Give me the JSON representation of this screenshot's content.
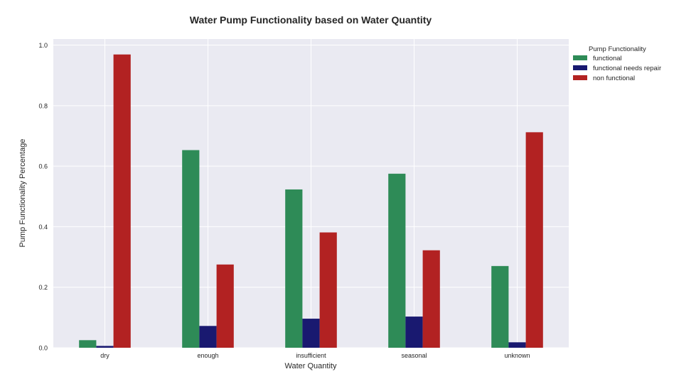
{
  "chart_data": {
    "type": "bar",
    "title": "Water Pump Functionality based on Water Quantity",
    "xlabel": "Water Quantity",
    "ylabel": "Pump Functionality Percentage",
    "categories": [
      "dry",
      "enough",
      "insufficient",
      "seasonal",
      "unknown"
    ],
    "ylim": [
      0,
      1.02
    ],
    "yticks": [
      0.0,
      0.2,
      0.4,
      0.6,
      0.8,
      1.0
    ],
    "ytick_labels": [
      "0.0",
      "0.2",
      "0.4",
      "0.6",
      "0.8",
      "1.0"
    ],
    "grid": true,
    "legend": {
      "title": "Pump Functionality",
      "placement": "outside-right-top"
    },
    "series": [
      {
        "name": "functional",
        "color": "#2e8b57",
        "values": [
          0.025,
          0.653,
          0.523,
          0.575,
          0.27
        ]
      },
      {
        "name": "functional needs repair",
        "color": "#191970",
        "values": [
          0.006,
          0.072,
          0.096,
          0.103,
          0.018
        ]
      },
      {
        "name": "non functional",
        "color": "#b22222",
        "values": [
          0.969,
          0.275,
          0.381,
          0.322,
          0.712
        ]
      }
    ]
  }
}
